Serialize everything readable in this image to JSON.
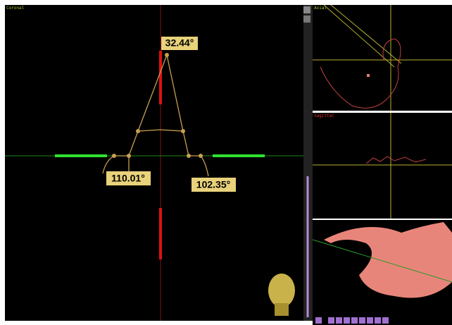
{
  "viewports": {
    "coronal": {
      "label": "Coronal",
      "angles": [
        "32.44°",
        "110.01°",
        "102.35°"
      ]
    },
    "axial": {
      "label": "Axial"
    },
    "sagittal": {
      "label": "Sagittal"
    }
  }
}
